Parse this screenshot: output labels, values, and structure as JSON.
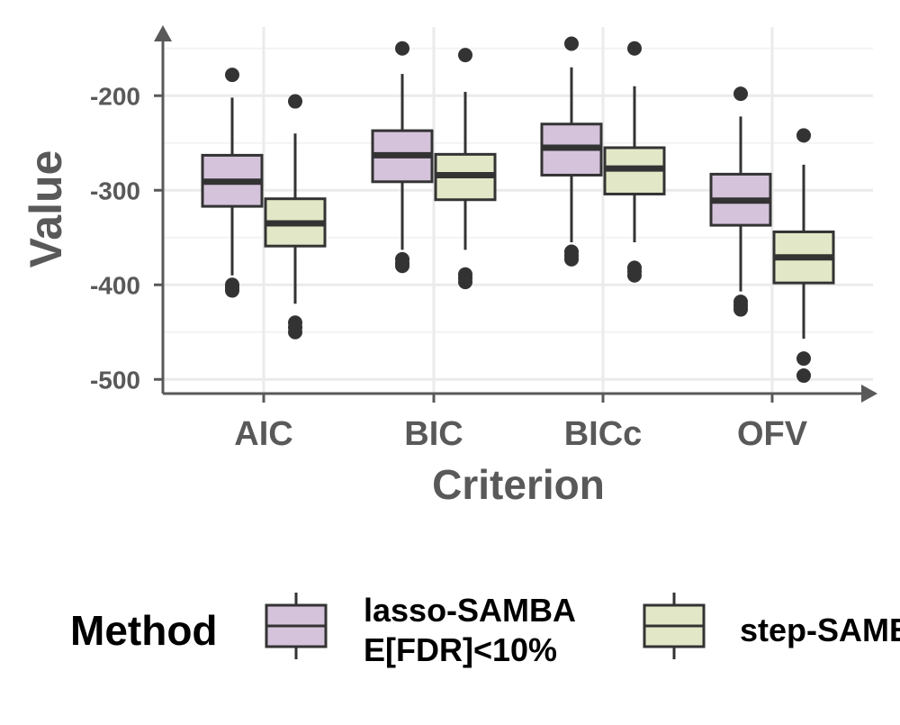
{
  "chart_data": {
    "type": "box",
    "title": "",
    "xlabel": "Criterion",
    "ylabel": "Value",
    "categories": [
      "AIC",
      "BIC",
      "BICc",
      "OFV"
    ],
    "ylim": [
      -515,
      -135
    ],
    "yticks": [
      -200,
      -300,
      -400,
      -500
    ],
    "grid": true,
    "legend": {
      "title": "Method",
      "position": "bottom",
      "entries": [
        "lasso-SAMBA\nE[FDR]<10%",
        "step-SAMBA"
      ]
    },
    "series": [
      {
        "name": "lasso-SAMBA\nE[FDR]<10%",
        "color": "#d5c3dc",
        "boxes": [
          {
            "category": "AIC",
            "whisker_low": -390,
            "q1": -317,
            "median": -291,
            "q3": -263,
            "whisker_high": -202,
            "outliers": [
              -178,
              -400,
              -403,
              -406
            ]
          },
          {
            "category": "BIC",
            "whisker_low": -363,
            "q1": -291,
            "median": -263,
            "q3": -237,
            "whisker_high": -177,
            "outliers": [
              -150,
              -373,
              -377,
              -380
            ]
          },
          {
            "category": "BICc",
            "whisker_low": -355,
            "q1": -284,
            "median": -255,
            "q3": -230,
            "whisker_high": -170,
            "outliers": [
              -145,
              -365,
              -369,
              -373
            ]
          },
          {
            "category": "OFV",
            "whisker_low": -407,
            "q1": -337,
            "median": -311,
            "q3": -283,
            "whisker_high": -222,
            "outliers": [
              -198,
              -418,
              -422,
              -426
            ]
          }
        ]
      },
      {
        "name": "step-SAMBA",
        "color": "#e2e8c7",
        "boxes": [
          {
            "category": "AIC",
            "whisker_low": -420,
            "q1": -359,
            "median": -335,
            "q3": -309,
            "whisker_high": -240,
            "outliers": [
              -206,
              -440,
              -445,
              -450
            ]
          },
          {
            "category": "BIC",
            "whisker_low": -363,
            "q1": -310,
            "median": -284,
            "q3": -262,
            "whisker_high": -196,
            "outliers": [
              -157,
              -389,
              -393,
              -397
            ]
          },
          {
            "category": "BICc",
            "whisker_low": -355,
            "q1": -304,
            "median": -277,
            "q3": -255,
            "whisker_high": -190,
            "outliers": [
              -150,
              -382,
              -386,
              -390
            ]
          },
          {
            "category": "OFV",
            "whisker_low": -457,
            "q1": -398,
            "median": -371,
            "q3": -344,
            "whisker_high": -273,
            "outliers": [
              -242,
              -478,
              -496
            ]
          }
        ]
      }
    ]
  }
}
